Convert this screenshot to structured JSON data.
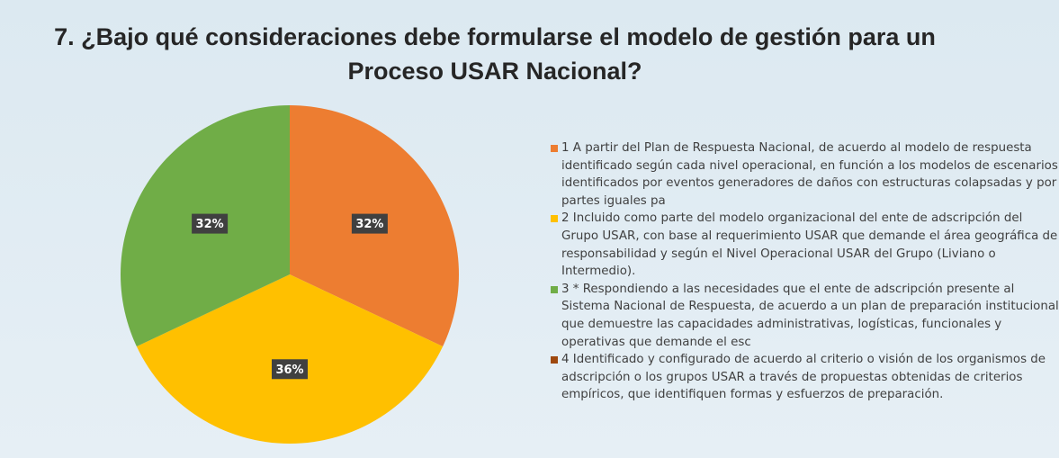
{
  "chart_data": {
    "type": "pie",
    "title": "7. ¿Bajo qué consideraciones debe formularse el modelo de gestión para un Proceso USAR Nacional?",
    "categories": [
      "1  A partir del Plan de Respuesta Nacional, de acuerdo al modelo de respuesta identificado según cada nivel operacional, en función a los modelos de escenarios identificados por eventos generadores de daños con estructuras colapsadas y por partes iguales pa",
      "2  Incluido como parte del modelo organizacional del ente de adscripción del Grupo USAR, con base al requerimiento USAR que demande el área geográfica de responsabilidad y según el Nivel Operacional USAR del Grupo (Liviano o Intermedio).",
      "3 * Respondiendo a las necesidades que el ente de adscripción presente al Sistema Nacional de Respuesta, de acuerdo a un plan de preparación institucional que demuestre las capacidades administrativas, logísticas, funcionales y operativas que demande el esc",
      "4  Identificado y configurado de acuerdo al criterio o visión de los organismos de adscripción o los grupos USAR a través de propuestas obtenidas de criterios empíricos, que identifiquen formas y esfuerzos de preparación."
    ],
    "values": [
      32,
      36,
      32,
      0
    ],
    "value_labels": [
      "32%",
      "36%",
      "32%",
      null
    ],
    "colors": [
      "#ED7D31",
      "#FFC000",
      "#70AD47",
      "#9E480E"
    ],
    "legend": "right"
  }
}
